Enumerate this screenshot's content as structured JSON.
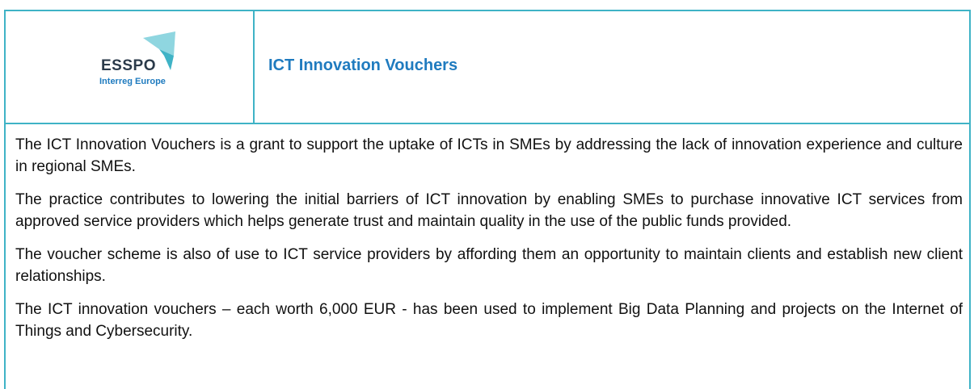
{
  "header": {
    "logo": {
      "name": "ESSPO",
      "subtitle": "Interreg Europe"
    },
    "title": "ICT Innovation Vouchers"
  },
  "body": {
    "paragraphs": [
      "The ICT Innovation Vouchers is a grant to support the uptake of ICTs in SMEs by addressing the lack of innovation experience and culture in regional SMEs.",
      "The practice contributes to lowering the initial barriers of ICT innovation by enabling SMEs to purchase innovative ICT services from approved service providers which helps generate trust and maintain quality in the use of the public funds provided.",
      "The voucher scheme is also of use to ICT service providers by affording them an opportunity to maintain clients and establish new client relationships.",
      "The ICT innovation vouchers – each worth 6,000 EUR - has been used to implement Big Data Planning and projects on the Internet of Things and Cybersecurity."
    ]
  }
}
